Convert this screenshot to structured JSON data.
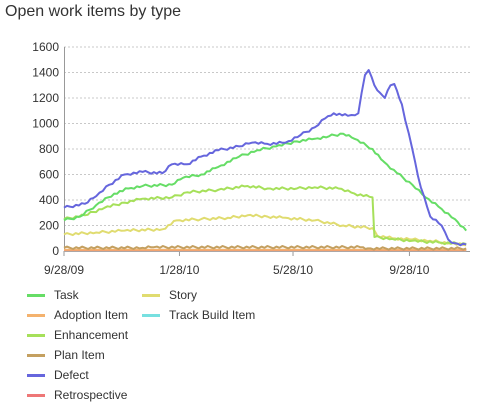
{
  "chart_data": {
    "type": "line",
    "title": "Open work items by type",
    "xlabel": "",
    "ylabel": "",
    "ylim": [
      0,
      1600
    ],
    "xlim": [
      "2009-09-28",
      "2010-12-01"
    ],
    "yticks": [
      "0",
      "200",
      "400",
      "600",
      "800",
      "1000",
      "1200",
      "1400",
      "1600"
    ],
    "xticks": [
      {
        "label": "9/28/09",
        "date": "2009-09-28"
      },
      {
        "label": "1/28/10",
        "date": "2010-01-28"
      },
      {
        "label": "5/28/10",
        "date": "2010-05-28"
      },
      {
        "label": "9/28/10",
        "date": "2010-09-28"
      }
    ],
    "grid": "horizontal dotted",
    "legend_position": "bottom-left",
    "series": [
      {
        "name": "Task",
        "color": "#66dd66",
        "points": [
          [
            "2009-09-28",
            240
          ],
          [
            "2009-10-15",
            270
          ],
          [
            "2009-11-01",
            360
          ],
          [
            "2009-11-20",
            450
          ],
          [
            "2009-12-05",
            490
          ],
          [
            "2009-12-20",
            510
          ],
          [
            "2010-01-20",
            520
          ],
          [
            "2010-02-01",
            575
          ],
          [
            "2010-02-20",
            600
          ],
          [
            "2010-03-10",
            660
          ],
          [
            "2010-04-01",
            740
          ],
          [
            "2010-04-20",
            790
          ],
          [
            "2010-05-10",
            820
          ],
          [
            "2010-06-01",
            860
          ],
          [
            "2010-06-20",
            880
          ],
          [
            "2010-07-05",
            900
          ],
          [
            "2010-07-20",
            920
          ],
          [
            "2010-08-01",
            880
          ],
          [
            "2010-08-20",
            800
          ],
          [
            "2010-09-01",
            700
          ],
          [
            "2010-09-15",
            610
          ],
          [
            "2010-10-01",
            520
          ],
          [
            "2010-10-15",
            420
          ],
          [
            "2010-11-01",
            330
          ],
          [
            "2010-11-15",
            250
          ],
          [
            "2010-11-27",
            160
          ]
        ]
      },
      {
        "name": "Adoption Item",
        "color": "#f4b26e",
        "points": [
          [
            "2009-09-28",
            10
          ],
          [
            "2010-11-27",
            10
          ]
        ]
      },
      {
        "name": "Enhancement",
        "color": "#a6e05a",
        "points": [
          [
            "2009-09-28",
            250
          ],
          [
            "2009-10-20",
            280
          ],
          [
            "2009-11-10",
            340
          ],
          [
            "2009-12-01",
            380
          ],
          [
            "2009-12-20",
            410
          ],
          [
            "2010-01-20",
            420
          ],
          [
            "2010-02-05",
            460
          ],
          [
            "2010-03-10",
            480
          ],
          [
            "2010-04-10",
            510
          ],
          [
            "2010-05-01",
            490
          ],
          [
            "2010-06-01",
            490
          ],
          [
            "2010-06-20",
            500
          ],
          [
            "2010-07-15",
            490
          ],
          [
            "2010-08-01",
            450
          ],
          [
            "2010-08-20",
            420
          ],
          [
            "2010-08-22",
            110
          ],
          [
            "2010-09-10",
            95
          ],
          [
            "2010-10-01",
            80
          ],
          [
            "2010-11-01",
            65
          ],
          [
            "2010-11-27",
            55
          ]
        ]
      },
      {
        "name": "Plan Item",
        "color": "#c4a060",
        "points": [
          [
            "2009-09-28",
            25
          ],
          [
            "2009-12-20",
            25
          ],
          [
            "2010-01-01",
            30
          ],
          [
            "2010-08-10",
            30
          ],
          [
            "2010-08-15",
            20
          ],
          [
            "2010-11-27",
            20
          ]
        ]
      },
      {
        "name": "Defect",
        "color": "#6666dd",
        "points": [
          [
            "2009-09-28",
            340
          ],
          [
            "2009-10-20",
            370
          ],
          [
            "2009-11-01",
            430
          ],
          [
            "2009-11-15",
            520
          ],
          [
            "2009-12-01",
            600
          ],
          [
            "2009-12-20",
            620
          ],
          [
            "2010-01-10",
            610
          ],
          [
            "2010-01-20",
            680
          ],
          [
            "2010-02-05",
            680
          ],
          [
            "2010-02-20",
            740
          ],
          [
            "2010-03-10",
            790
          ],
          [
            "2010-04-01",
            820
          ],
          [
            "2010-04-15",
            850
          ],
          [
            "2010-05-01",
            840
          ],
          [
            "2010-05-20",
            850
          ],
          [
            "2010-06-05",
            910
          ],
          [
            "2010-06-20",
            970
          ],
          [
            "2010-07-01",
            1040
          ],
          [
            "2010-07-10",
            1080
          ],
          [
            "2010-07-25",
            1060
          ],
          [
            "2010-08-05",
            1080
          ],
          [
            "2010-08-12",
            1380
          ],
          [
            "2010-08-16",
            1420
          ],
          [
            "2010-08-22",
            1300
          ],
          [
            "2010-08-28",
            1240
          ],
          [
            "2010-09-02",
            1200
          ],
          [
            "2010-09-08",
            1300
          ],
          [
            "2010-09-12",
            1310
          ],
          [
            "2010-09-20",
            1150
          ],
          [
            "2010-10-01",
            800
          ],
          [
            "2010-10-10",
            500
          ],
          [
            "2010-10-20",
            270
          ],
          [
            "2010-11-01",
            200
          ],
          [
            "2010-11-08",
            90
          ],
          [
            "2010-11-15",
            60
          ],
          [
            "2010-11-27",
            50
          ]
        ]
      },
      {
        "name": "Retrospective",
        "color": "#ee7777",
        "points": [
          [
            "2009-09-28",
            5
          ],
          [
            "2010-11-27",
            5
          ]
        ]
      },
      {
        "name": "Story",
        "color": "#e0dc70",
        "points": [
          [
            "2009-09-28",
            130
          ],
          [
            "2009-11-01",
            145
          ],
          [
            "2009-12-01",
            160
          ],
          [
            "2010-01-10",
            170
          ],
          [
            "2010-01-25",
            240
          ],
          [
            "2010-02-20",
            250
          ],
          [
            "2010-03-20",
            260
          ],
          [
            "2010-04-10",
            280
          ],
          [
            "2010-05-01",
            270
          ],
          [
            "2010-05-20",
            260
          ],
          [
            "2010-06-20",
            240
          ],
          [
            "2010-07-20",
            200
          ],
          [
            "2010-08-20",
            180
          ],
          [
            "2010-08-25",
            120
          ],
          [
            "2010-09-10",
            100
          ],
          [
            "2010-10-01",
            90
          ],
          [
            "2010-10-20",
            80
          ],
          [
            "2010-11-10",
            60
          ],
          [
            "2010-11-27",
            45
          ]
        ]
      },
      {
        "name": "Track Build Item",
        "color": "#77e0e0",
        "points": [
          [
            "2009-09-28",
            2
          ],
          [
            "2010-11-27",
            2
          ]
        ]
      }
    ]
  }
}
